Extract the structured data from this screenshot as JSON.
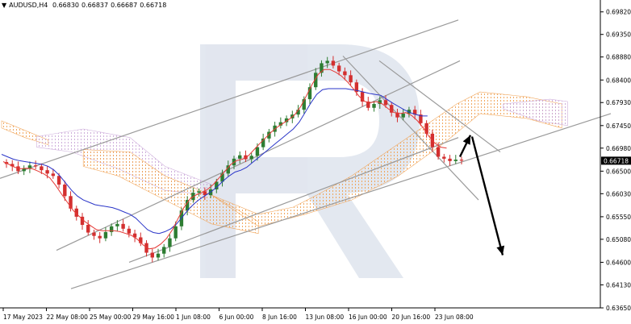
{
  "header": {
    "symbol": "AUDUSD,H4",
    "open": "0.66830",
    "high": "0.66837",
    "low": "0.66687",
    "close": "0.66718",
    "triangle_icon": "down-triangle-icon"
  },
  "chart_data": {
    "type": "candlestick",
    "title": "AUDUSD,H4",
    "ylim": [
      0.6365,
      0.6995
    ],
    "y_ticks": [
      "0.69820",
      "0.69350",
      "0.68880",
      "0.68400",
      "0.67930",
      "0.67450",
      "0.66980",
      "0.66500",
      "0.66030",
      "0.65550",
      "0.65080",
      "0.64600",
      "0.64130",
      "0.63650"
    ],
    "x_ticks": [
      "17 May 2023",
      "22 May 08:00",
      "25 May 00:00",
      "29 May 16:00",
      "1 Jun 08:00",
      "6 Jun 00:00",
      "8 Jun 16:00",
      "13 Jun 08:00",
      "16 Jun 00:00",
      "20 Jun 16:00",
      "23 Jun 08:00"
    ],
    "current_price": "0.66718",
    "grid": false,
    "colors": {
      "up": "#2e7d32",
      "down": "#d32f2f",
      "tenkan": "#e53935",
      "kijun": "#2a35c8",
      "channel": "#9a9a9a",
      "arrow": "#000000",
      "cloud_up": "#f0a050",
      "cloud_down": "#c9a6d8",
      "price_box": "#000000"
    },
    "close_path": [
      0.6665,
      0.666,
      0.665,
      0.6656,
      0.6662,
      0.666,
      0.6652,
      0.6645,
      0.664,
      0.6622,
      0.6598,
      0.6572,
      0.6555,
      0.6538,
      0.6522,
      0.6515,
      0.651,
      0.6523,
      0.6535,
      0.654,
      0.653,
      0.652,
      0.6512,
      0.65,
      0.648,
      0.647,
      0.6478,
      0.6492,
      0.651,
      0.6535,
      0.6568,
      0.659,
      0.6605,
      0.6608,
      0.66,
      0.6612,
      0.6628,
      0.6645,
      0.6662,
      0.6676,
      0.6683,
      0.6675,
      0.6682,
      0.67,
      0.6718,
      0.6732,
      0.6745,
      0.6752,
      0.676,
      0.6768,
      0.6778,
      0.68,
      0.6825,
      0.6855,
      0.6875,
      0.688,
      0.687,
      0.6858,
      0.685,
      0.6835,
      0.6815,
      0.6795,
      0.6782,
      0.679,
      0.6798,
      0.6788,
      0.6772,
      0.6762,
      0.677,
      0.6778,
      0.6768,
      0.675,
      0.6728,
      0.67,
      0.668,
      0.6676,
      0.6671,
      0.6674,
      0.6672
    ],
    "tenkan_path": [
      0.667,
      0.6664,
      0.6658,
      0.6655,
      0.6656,
      0.6655,
      0.665,
      0.6644,
      0.6636,
      0.662,
      0.6602,
      0.6585,
      0.6568,
      0.6556,
      0.6545,
      0.6536,
      0.6528,
      0.6526,
      0.6526,
      0.6526,
      0.6524,
      0.652,
      0.6516,
      0.6508,
      0.6496,
      0.6488,
      0.649,
      0.6498,
      0.651,
      0.6528,
      0.6552,
      0.6575,
      0.6592,
      0.66,
      0.6605,
      0.6612,
      0.6622,
      0.6636,
      0.665,
      0.6664,
      0.6672,
      0.6675,
      0.6682,
      0.6695,
      0.6708,
      0.672,
      0.6732,
      0.6742,
      0.675,
      0.6758,
      0.6768,
      0.6785,
      0.6808,
      0.6832,
      0.6852,
      0.6862,
      0.6862,
      0.6856,
      0.6848,
      0.6836,
      0.6822,
      0.6806,
      0.6795,
      0.6793,
      0.6795,
      0.679,
      0.678,
      0.6772,
      0.677,
      0.6772,
      0.6766,
      0.6755,
      0.674,
      0.6722,
      0.6708,
      0.67,
      0.6698
    ],
    "kijun_path": [
      0.6685,
      0.668,
      0.6675,
      0.6672,
      0.667,
      0.6668,
      0.6666,
      0.6664,
      0.666,
      0.6652,
      0.664,
      0.6625,
      0.661,
      0.6598,
      0.659,
      0.6585,
      0.658,
      0.6578,
      0.6576,
      0.6574,
      0.657,
      0.6565,
      0.656,
      0.6552,
      0.654,
      0.6528,
      0.6522,
      0.652,
      0.6524,
      0.653,
      0.654,
      0.6555,
      0.657,
      0.6582,
      0.6592,
      0.66,
      0.6608,
      0.6618,
      0.663,
      0.664,
      0.6648,
      0.6652,
      0.6658,
      0.6668,
      0.6678,
      0.6688,
      0.6698,
      0.6708,
      0.6718,
      0.6728,
      0.6738,
      0.6752,
      0.6772,
      0.6792,
      0.681,
      0.682,
      0.6822,
      0.6822,
      0.6822,
      0.6822,
      0.682,
      0.6818,
      0.6815,
      0.6812,
      0.681,
      0.6808,
      0.68,
      0.6792,
      0.6785,
      0.6778,
      0.6772,
      0.6768,
      0.6765,
      0.6765
    ]
  }
}
